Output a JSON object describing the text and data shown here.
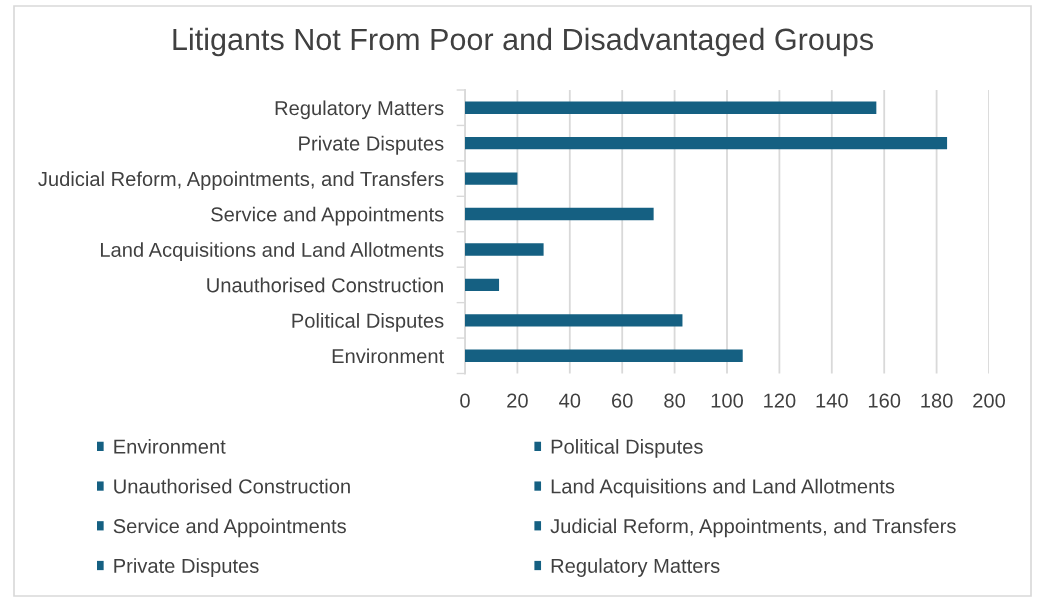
{
  "chart_data": {
    "type": "bar",
    "orientation": "horizontal",
    "title": "Litigants Not From Poor and Disadvantaged Groups",
    "categories": [
      "Regulatory Matters",
      "Private Disputes",
      "Judicial Reform, Appointments, and Transfers",
      "Service and Appointments",
      "Land Acquisitions and Land Allotments",
      "Unauthorised Construction",
      "Political Disputes",
      "Environment"
    ],
    "series": [
      {
        "name": "Environment",
        "color": "#156082",
        "values": [
          null,
          null,
          null,
          null,
          null,
          null,
          null,
          106
        ]
      },
      {
        "name": "Political Disputes",
        "color": "#156082",
        "values": [
          null,
          null,
          null,
          null,
          null,
          null,
          83,
          null
        ]
      },
      {
        "name": "Unauthorised Construction",
        "color": "#156082",
        "values": [
          null,
          null,
          null,
          null,
          null,
          13,
          null,
          null
        ]
      },
      {
        "name": "Land Acquisitions and Land Allotments",
        "color": "#156082",
        "values": [
          null,
          null,
          null,
          null,
          30,
          null,
          null,
          null
        ]
      },
      {
        "name": "Service and Appointments",
        "color": "#156082",
        "values": [
          null,
          null,
          null,
          72,
          null,
          null,
          null,
          null
        ]
      },
      {
        "name": "Judicial Reform, Appointments, and Transfers",
        "color": "#156082",
        "values": [
          null,
          null,
          20,
          null,
          null,
          null,
          null,
          null
        ]
      },
      {
        "name": "Private Disputes",
        "color": "#156082",
        "values": [
          null,
          184,
          null,
          null,
          null,
          null,
          null,
          null
        ]
      },
      {
        "name": "Regulatory Matters",
        "color": "#156082",
        "values": [
          157,
          null,
          null,
          null,
          null,
          null,
          null,
          null
        ]
      }
    ],
    "xlim": [
      0,
      200
    ],
    "xticks": [
      0,
      20,
      40,
      60,
      80,
      100,
      120,
      140,
      160,
      180,
      200
    ],
    "grid": "x",
    "legend": "bottom"
  }
}
